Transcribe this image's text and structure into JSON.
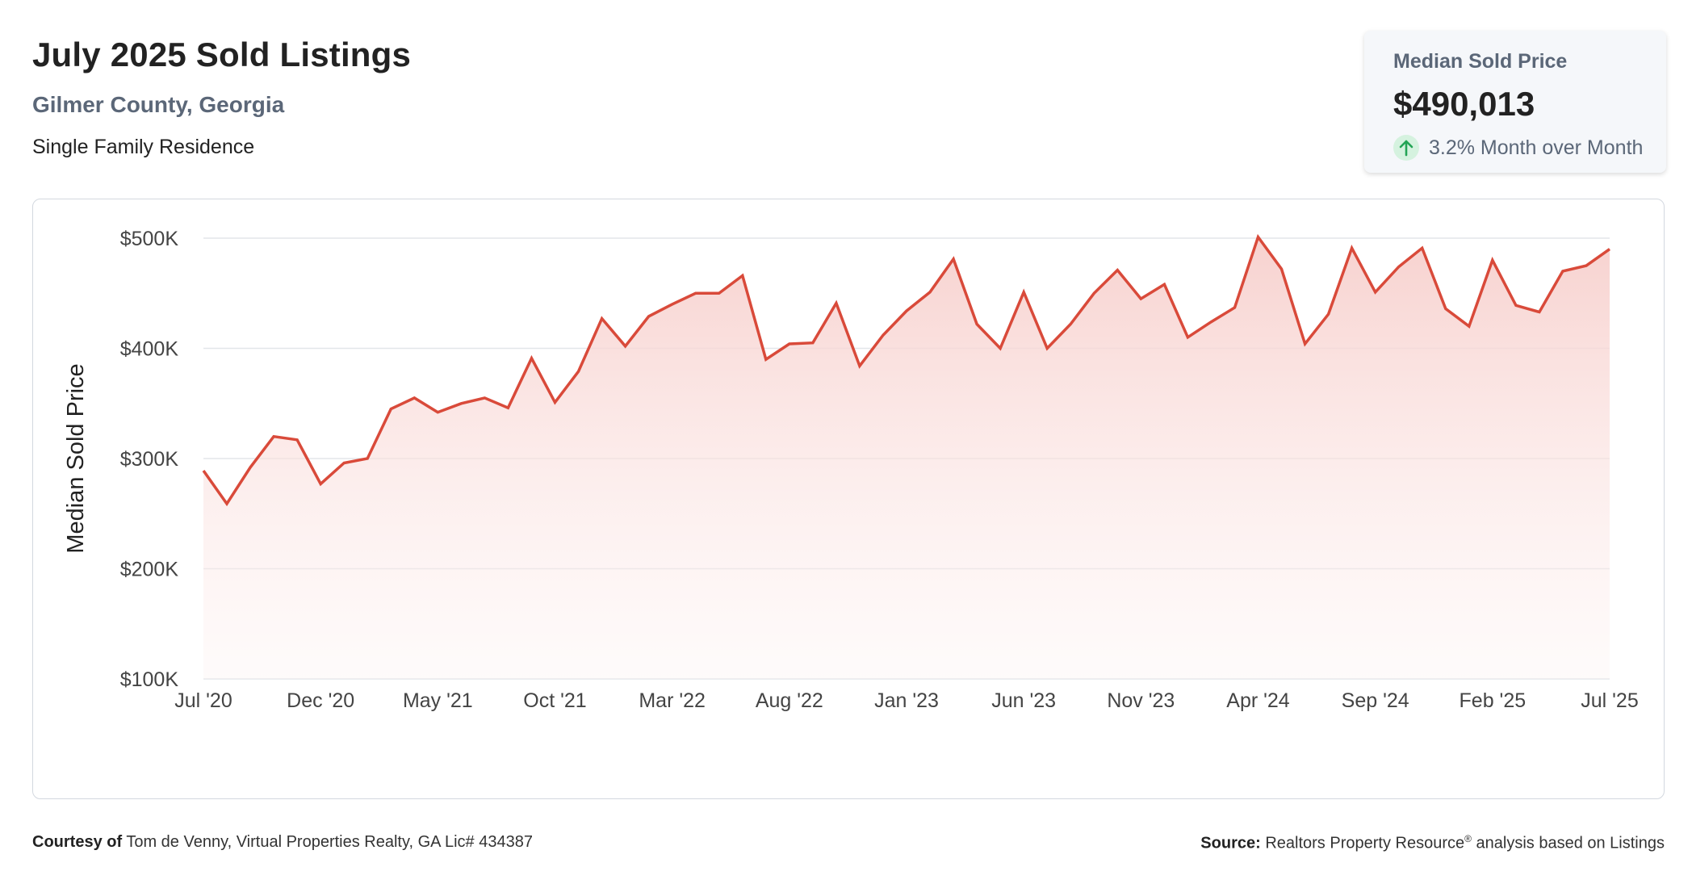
{
  "header": {
    "title": "July 2025 Sold Listings",
    "location": "Gilmer County, Georgia",
    "property_type": "Single Family Residence"
  },
  "kpi": {
    "label": "Median Sold Price",
    "value": "$490,013",
    "change": "3.2% Month over Month",
    "direction_icon": "arrow-up-icon",
    "positive_color": "#23a455"
  },
  "footer": {
    "courtesy_label": "Courtesy of",
    "courtesy_text": "Tom de Venny, Virtual Properties Realty, GA Lic# 434387",
    "source_label": "Source:",
    "source_text": "Realtors Property Resource",
    "source_mark": "®",
    "source_suffix": "analysis based on Listings"
  },
  "chart_data": {
    "type": "area",
    "title": "",
    "xlabel": "",
    "ylabel": "Median Sold Price",
    "line_color": "#d94a3a",
    "fill_color": "#f8d8d6",
    "grid": true,
    "ylim": [
      100000,
      500000
    ],
    "yticks": [
      {
        "value": 500000,
        "label": "$500K"
      },
      {
        "value": 400000,
        "label": "$400K"
      },
      {
        "value": 300000,
        "label": "$300K"
      },
      {
        "value": 200000,
        "label": "$200K"
      },
      {
        "value": 100000,
        "label": "$100K"
      }
    ],
    "xtick_labels": [
      "Jul '20",
      "Dec '20",
      "May '21",
      "Oct '21",
      "Mar '22",
      "Aug '22",
      "Jan '23",
      "Jun '23",
      "Nov '23",
      "Apr '24",
      "Sep '24",
      "Feb '25",
      "Jul '25"
    ],
    "x": [
      "Jul '20",
      "Aug '20",
      "Sep '20",
      "Oct '20",
      "Nov '20",
      "Dec '20",
      "Jan '21",
      "Feb '21",
      "Mar '21",
      "Apr '21",
      "May '21",
      "Jun '21",
      "Jul '21",
      "Aug '21",
      "Sep '21",
      "Oct '21",
      "Nov '21",
      "Dec '21",
      "Jan '22",
      "Feb '22",
      "Mar '22",
      "Apr '22",
      "May '22",
      "Jun '22",
      "Jul '22",
      "Aug '22",
      "Sep '22",
      "Oct '22",
      "Nov '22",
      "Dec '22",
      "Jan '23",
      "Feb '23",
      "Mar '23",
      "Apr '23",
      "May '23",
      "Jun '23",
      "Jul '23",
      "Aug '23",
      "Sep '23",
      "Oct '23",
      "Nov '23",
      "Dec '23",
      "Jan '24",
      "Feb '24",
      "Mar '24",
      "Apr '24",
      "May '24",
      "Jun '24",
      "Jul '24",
      "Aug '24",
      "Sep '24",
      "Oct '24",
      "Nov '24",
      "Dec '24",
      "Jan '25",
      "Feb '25",
      "Mar '25",
      "Apr '25",
      "May '25",
      "Jun '25",
      "Jul '25"
    ],
    "values": [
      289000,
      259000,
      292000,
      320000,
      317000,
      277000,
      296000,
      300000,
      345000,
      355000,
      342000,
      350000,
      355000,
      346000,
      391000,
      351000,
      379000,
      427000,
      402000,
      429000,
      440000,
      450000,
      450000,
      466000,
      390000,
      404000,
      405000,
      441000,
      384000,
      412000,
      434000,
      451000,
      481000,
      422000,
      400000,
      451000,
      400000,
      422000,
      450000,
      471000,
      445000,
      458000,
      410000,
      424000,
      437000,
      501000,
      472000,
      404000,
      431000,
      491000,
      451000,
      474000,
      491000,
      436000,
      420000,
      480000,
      439000,
      433000,
      470000,
      475000,
      490013
    ]
  }
}
